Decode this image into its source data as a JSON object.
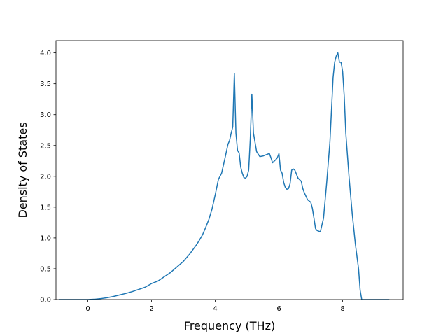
{
  "chart_data": {
    "type": "line",
    "title": "",
    "xlabel": "Frequency (THz)",
    "ylabel": "Density of States",
    "xlim": [
      -1.0,
      9.9
    ],
    "ylim": [
      0.0,
      4.2
    ],
    "xticks": [
      0,
      2,
      4,
      6,
      8
    ],
    "yticks": [
      0.0,
      0.5,
      1.0,
      1.5,
      2.0,
      2.5,
      3.0,
      3.5,
      4.0
    ],
    "xtick_labels": [
      "0",
      "2",
      "4",
      "6",
      "8"
    ],
    "ytick_labels": [
      "0.0",
      "0.5",
      "1.0",
      "1.5",
      "2.0",
      "2.5",
      "3.0",
      "3.5",
      "4.0"
    ],
    "grid": false,
    "legend": "none",
    "line_color": "#1f77b4",
    "series": [
      {
        "x": [
          -0.88,
          -0.4,
          0.0,
          0.2,
          0.4,
          0.6,
          0.8,
          1.0,
          1.2,
          1.4,
          1.6,
          1.8,
          2.0,
          2.2,
          2.4,
          2.6,
          2.8,
          3.0,
          3.2,
          3.4,
          3.5,
          3.6,
          3.7,
          3.8,
          3.9,
          4.0,
          4.1,
          4.2,
          4.3,
          4.4,
          4.45,
          4.5,
          4.55,
          4.6,
          4.65,
          4.7,
          4.75,
          4.8,
          4.85,
          4.9,
          4.95,
          5.0,
          5.05,
          5.1,
          5.15,
          5.2,
          5.3,
          5.4,
          5.5,
          5.6,
          5.7,
          5.75,
          5.8,
          5.9,
          5.95,
          6.0,
          6.05,
          6.1,
          6.15,
          6.2,
          6.25,
          6.3,
          6.35,
          6.4,
          6.45,
          6.5,
          6.6,
          6.7,
          6.75,
          6.8,
          6.9,
          7.0,
          7.05,
          7.1,
          7.15,
          7.2,
          7.3,
          7.4,
          7.5,
          7.6,
          7.7,
          7.75,
          7.8,
          7.85,
          7.9,
          7.95,
          8.0,
          8.05,
          8.1,
          8.2,
          8.3,
          8.4,
          8.5,
          8.55,
          8.6,
          8.7,
          8.9,
          9.2,
          9.45
        ],
        "y": [
          0.0,
          0.0,
          0.0,
          0.005,
          0.015,
          0.03,
          0.05,
          0.075,
          0.1,
          0.13,
          0.165,
          0.2,
          0.26,
          0.3,
          0.37,
          0.44,
          0.53,
          0.62,
          0.74,
          0.88,
          0.96,
          1.05,
          1.17,
          1.3,
          1.47,
          1.7,
          1.95,
          2.05,
          2.28,
          2.52,
          2.58,
          2.7,
          2.8,
          3.67,
          2.7,
          2.42,
          2.38,
          2.15,
          2.05,
          1.98,
          1.97,
          2.0,
          2.1,
          2.6,
          3.33,
          2.7,
          2.4,
          2.32,
          2.33,
          2.35,
          2.37,
          2.3,
          2.22,
          2.27,
          2.3,
          2.37,
          2.1,
          2.05,
          1.9,
          1.82,
          1.79,
          1.8,
          1.88,
          2.1,
          2.12,
          2.1,
          1.97,
          1.92,
          1.8,
          1.73,
          1.62,
          1.58,
          1.48,
          1.32,
          1.15,
          1.12,
          1.1,
          1.32,
          1.9,
          2.55,
          3.6,
          3.85,
          3.95,
          4.0,
          3.85,
          3.85,
          3.7,
          3.3,
          2.7,
          2.0,
          1.4,
          0.9,
          0.5,
          0.15,
          0.0,
          0.0,
          0.0,
          0.0,
          0.0
        ]
      }
    ]
  }
}
